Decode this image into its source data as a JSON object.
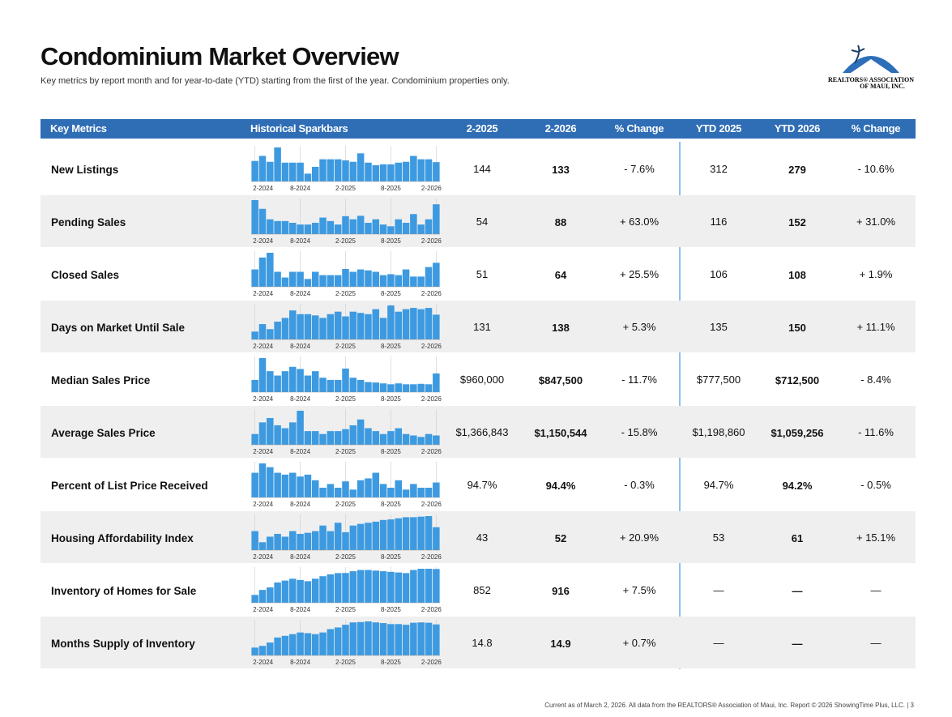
{
  "header": {
    "title": "Condominium Market Overview",
    "subtitle": "Key metrics by report month and for year-to-date (YTD) starting from the first of the year. Condominium properties only.",
    "logo_line1": "REALTORS® ASSOCIATION",
    "logo_line2": "OF MAUI, INC."
  },
  "table": {
    "columns": [
      "Key Metrics",
      "Historical Sparkbars",
      "2-2025",
      "2-2026",
      "% Change",
      "YTD 2025",
      "YTD 2026",
      "% Change"
    ],
    "spark_labels": [
      "2-2024",
      "8-2024",
      "2-2025",
      "8-2025",
      "2-2026"
    ],
    "rows": [
      {
        "metric": "New Listings",
        "spark": [
          140,
          170,
          135,
          220,
          130,
          130,
          130,
          65,
          105,
          150,
          150,
          150,
          144,
          135,
          185,
          130,
          115,
          120,
          120,
          130,
          135,
          170,
          150,
          150,
          133
        ],
        "cells": [
          "144",
          "133",
          "- 7.6%",
          "312",
          "279",
          "- 10.6%"
        ]
      },
      {
        "metric": "Pending Sales",
        "spark": [
          100,
          75,
          45,
          40,
          40,
          35,
          30,
          30,
          35,
          50,
          40,
          30,
          54,
          45,
          55,
          35,
          45,
          30,
          25,
          45,
          35,
          60,
          30,
          45,
          88
        ],
        "cells": [
          "54",
          "88",
          "+ 63.0%",
          "116",
          "152",
          "+ 31.0%"
        ]
      },
      {
        "metric": "Closed Sales",
        "spark": [
          50,
          75,
          85,
          45,
          33,
          45,
          45,
          30,
          45,
          38,
          38,
          38,
          51,
          45,
          50,
          48,
          45,
          38,
          40,
          38,
          50,
          35,
          35,
          55,
          64
        ],
        "cells": [
          "51",
          "64",
          "+ 25.5%",
          "106",
          "108",
          "+ 1.9%"
        ]
      },
      {
        "metric": "Days on Market Until Sale",
        "spark": [
          70,
          100,
          80,
          110,
          125,
          155,
          140,
          140,
          135,
          125,
          140,
          150,
          131,
          150,
          145,
          140,
          160,
          125,
          175,
          150,
          160,
          165,
          160,
          165,
          138
        ],
        "cells": [
          "131",
          "138",
          "+ 5.3%",
          "135",
          "150",
          "+ 11.1%"
        ]
      },
      {
        "metric": "Median Sales Price",
        "spark": [
          700000,
          1200000,
          900000,
          800000,
          900000,
          1000000,
          950000,
          800000,
          900000,
          750000,
          700000,
          700000,
          960000,
          750000,
          700000,
          650000,
          640000,
          620000,
          600000,
          620000,
          600000,
          600000,
          610000,
          600000,
          847500
        ],
        "cells": [
          "$960,000",
          "$847,500",
          "- 11.7%",
          "$777,500",
          "$712,500",
          "- 8.4%"
        ]
      },
      {
        "metric": "Average Sales Price",
        "spark": [
          1200000,
          1600000,
          1750000,
          1500000,
          1400000,
          1600000,
          2000000,
          1300000,
          1300000,
          1200000,
          1300000,
          1300000,
          1366843,
          1500000,
          1700000,
          1400000,
          1300000,
          1200000,
          1300000,
          1400000,
          1200000,
          1150000,
          1100000,
          1200000,
          1150544
        ],
        "cells": [
          "$1,366,843",
          "$1,150,544",
          "- 15.8%",
          "$1,198,860",
          "$1,059,256",
          "- 11.6%"
        ]
      },
      {
        "metric": "Percent of List Price Received",
        "spark": [
          97,
          99.5,
          98.5,
          97,
          96.5,
          97,
          96,
          96.5,
          95,
          93,
          94,
          93,
          94.7,
          92.5,
          95,
          95.5,
          97,
          94,
          93,
          95,
          92.5,
          94,
          93,
          93,
          94.4
        ],
        "cells": [
          "94.7%",
          "94.4%",
          "- 0.3%",
          "94.7%",
          "94.2%",
          "- 0.5%"
        ]
      },
      {
        "metric": "Housing Affordability Index",
        "spark": [
          45,
          25,
          35,
          40,
          35,
          45,
          40,
          42,
          45,
          55,
          45,
          60,
          43,
          55,
          58,
          60,
          62,
          65,
          66,
          68,
          70,
          70,
          71,
          72,
          52
        ],
        "cells": [
          "43",
          "52",
          "+ 20.9%",
          "53",
          "61",
          "+ 15.1%"
        ]
      },
      {
        "metric": "Inventory of Homes for Sale",
        "spark": [
          500,
          580,
          620,
          700,
          730,
          760,
          740,
          720,
          760,
          800,
          830,
          850,
          852,
          880,
          900,
          900,
          890,
          880,
          870,
          860,
          850,
          900,
          920,
          920,
          916
        ],
        "cells": [
          "852",
          "916",
          "+ 7.5%",
          "—",
          "—",
          "—"
        ]
      },
      {
        "metric": "Months Supply of Inventory",
        "spark": [
          8,
          8.5,
          9.5,
          11,
          11.5,
          12,
          12.5,
          12.3,
          12,
          12.5,
          13.5,
          14,
          14.8,
          15.5,
          15.6,
          15.8,
          15.5,
          15.3,
          15,
          15,
          14.8,
          15.4,
          15.5,
          15.4,
          14.9
        ],
        "cells": [
          "14.8",
          "14.9",
          "+ 0.7%",
          "—",
          "—",
          "—"
        ]
      }
    ]
  },
  "footer": "Current as of March 2, 2026. All data from the REALTORS® Association of Maui, Inc. Report © 2026 ShowingTime Plus, LLC.  |  3"
}
